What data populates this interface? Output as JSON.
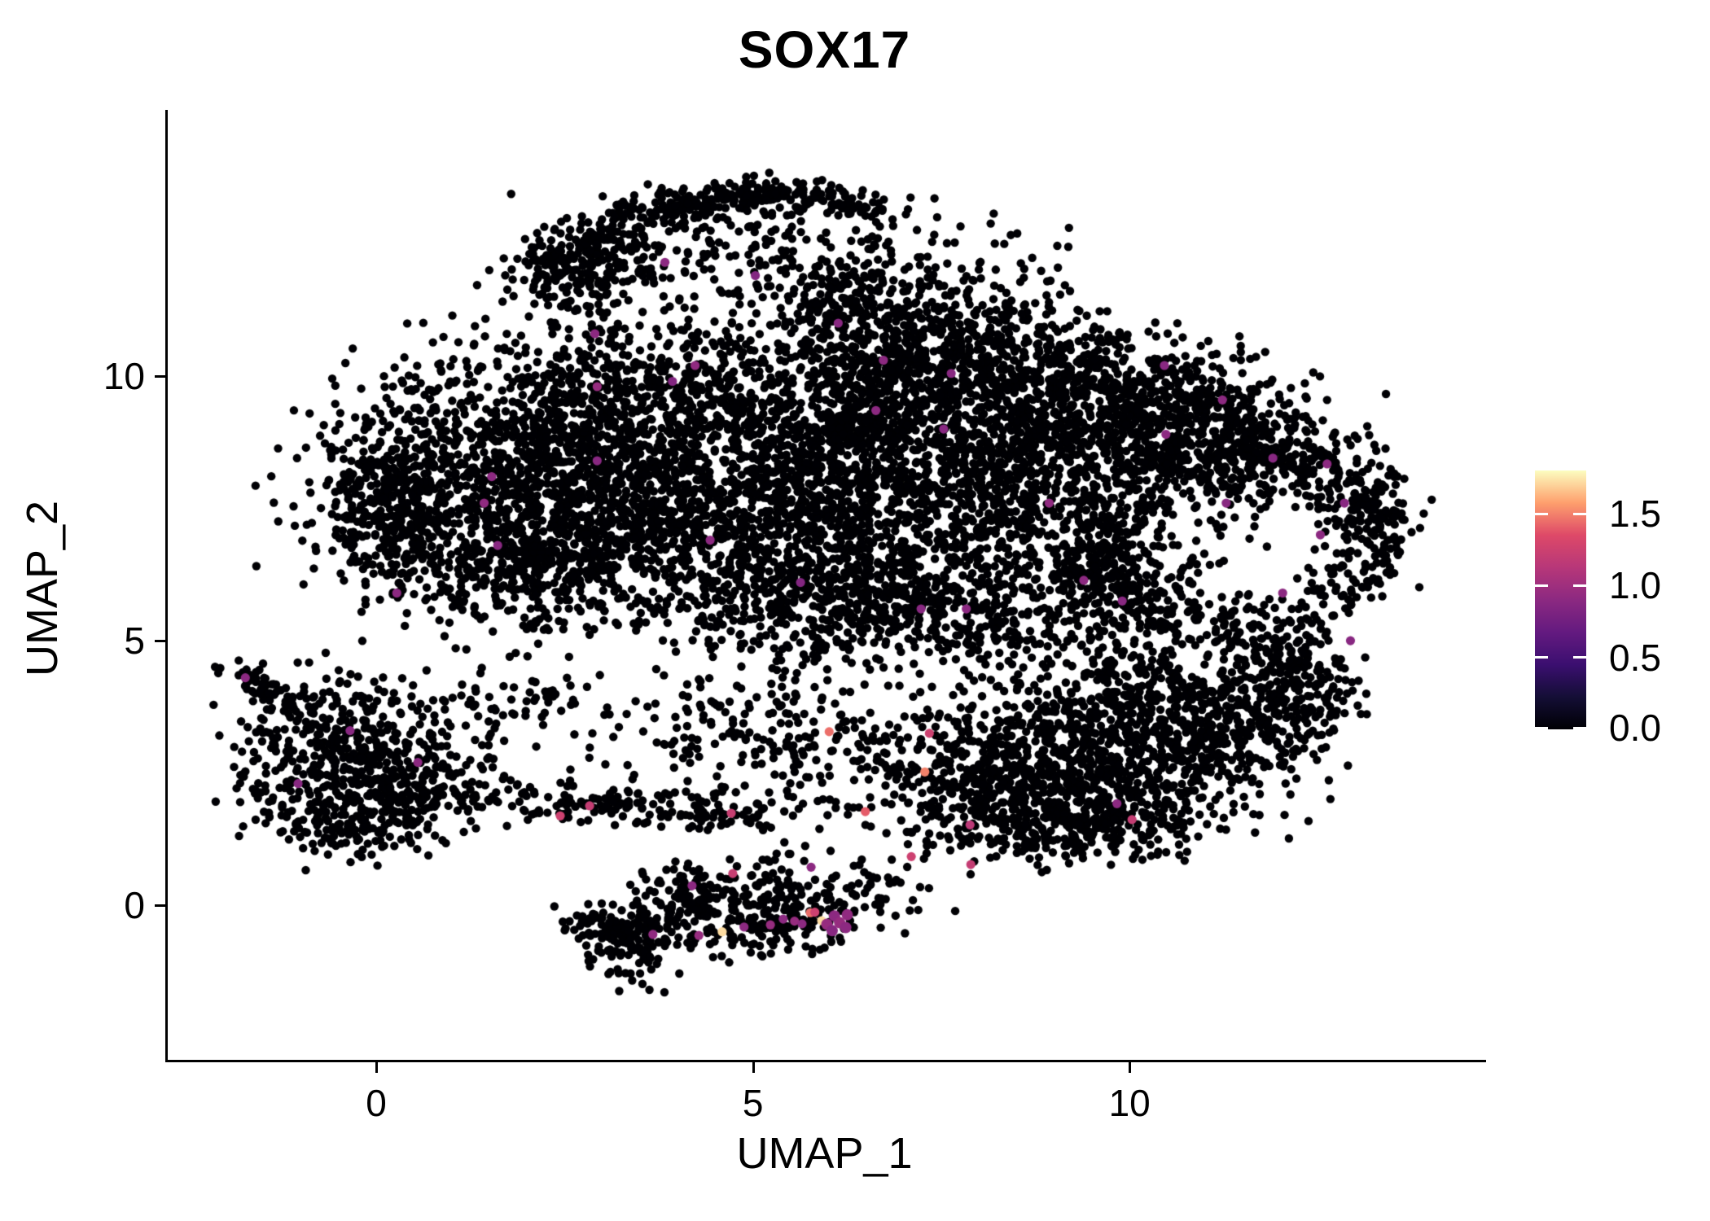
{
  "title": "SOX17",
  "chart_data": {
    "type": "scatter",
    "title": "SOX17",
    "xlabel": "UMAP_1",
    "ylabel": "UMAP_2",
    "xlim": [
      -2.8,
      14.7
    ],
    "ylim": [
      -2.92,
      15.03
    ],
    "grid": false,
    "x_ticks": [
      0,
      5,
      10
    ],
    "x_tick_labels": [
      "0",
      "5",
      "10"
    ],
    "y_ticks": [
      0,
      5,
      10
    ],
    "y_tick_labels": [
      "0",
      "5",
      "10"
    ],
    "point_radius_px": 5.2,
    "base_point_color_value": 0,
    "seed": 7,
    "color_scale": {
      "name": "magma",
      "domain": [
        0,
        1.8
      ],
      "legend_ticks": [
        1.5,
        1.0,
        0.5,
        0.0
      ],
      "legend_tick_labels": [
        "1.5",
        "1.0",
        "0.5",
        "0.0"
      ],
      "stops": [
        "#000004",
        "#140e36",
        "#3b0f70",
        "#641a80",
        "#8c2981",
        "#b73779",
        "#de4968",
        "#fe9f6d",
        "#fcfdbf"
      ]
    },
    "clusters": [
      {
        "type": "curve",
        "x0": 2.0,
        "x1": 6.7,
        "a": 11.95,
        "b": 4.6,
        "c": -3.5,
        "jx": 0.22,
        "jy": 0.16,
        "n": 330
      },
      {
        "type": "gauss",
        "cx": 4.6,
        "cy": 12.55,
        "sx": 1.15,
        "sy": 0.5,
        "n": 230
      },
      {
        "type": "gauss",
        "cx": 2.7,
        "cy": 11.9,
        "sx": 0.5,
        "sy": 0.4,
        "n": 150
      },
      {
        "type": "gauss",
        "cx": 6.2,
        "cy": 11.5,
        "sx": 0.55,
        "sy": 0.45,
        "n": 130
      },
      {
        "type": "gauss",
        "cx": 7.6,
        "cy": 11.75,
        "sx": 0.8,
        "sy": 0.55,
        "n": 85
      },
      {
        "type": "gauss",
        "cx": 1.3,
        "cy": 8.2,
        "sx": 1.05,
        "sy": 1.15,
        "n": 700
      },
      {
        "type": "gauss",
        "cx": 0.5,
        "cy": 7.1,
        "sx": 0.55,
        "sy": 0.75,
        "n": 220
      },
      {
        "type": "gauss",
        "cx": 0.05,
        "cy": 7.7,
        "sx": 0.35,
        "sy": 0.6,
        "n": 120
      },
      {
        "type": "gauss",
        "cx": 2.0,
        "cy": 6.3,
        "sx": 0.7,
        "sy": 0.6,
        "n": 250
      },
      {
        "type": "gauss",
        "cx": 3.2,
        "cy": 9.4,
        "sx": 0.95,
        "sy": 0.85,
        "n": 520
      },
      {
        "type": "gauss",
        "cx": 2.8,
        "cy": 7.5,
        "sx": 0.85,
        "sy": 0.95,
        "n": 460
      },
      {
        "type": "gauss",
        "cx": 4.8,
        "cy": 8.6,
        "sx": 1.1,
        "sy": 1.25,
        "n": 700
      },
      {
        "type": "gauss",
        "cx": 4.4,
        "cy": 6.7,
        "sx": 1.0,
        "sy": 0.7,
        "n": 350
      },
      {
        "type": "gauss",
        "cx": 6.4,
        "cy": 9.7,
        "sx": 1.0,
        "sy": 0.95,
        "n": 560
      },
      {
        "type": "gauss",
        "cx": 6.3,
        "cy": 7.6,
        "sx": 0.9,
        "sy": 1.0,
        "n": 500
      },
      {
        "type": "gauss",
        "cx": 8.3,
        "cy": 8.3,
        "sx": 1.05,
        "sy": 1.15,
        "n": 900
      },
      {
        "type": "gauss",
        "cx": 8.0,
        "cy": 10.4,
        "sx": 1.15,
        "sy": 0.6,
        "n": 420
      },
      {
        "type": "gauss",
        "cx": 9.7,
        "cy": 9.3,
        "sx": 0.85,
        "sy": 0.75,
        "n": 380
      },
      {
        "type": "gauss",
        "cx": 10.6,
        "cy": 9.4,
        "sx": 0.8,
        "sy": 0.55,
        "n": 250
      },
      {
        "type": "gauss",
        "cx": 11.6,
        "cy": 8.6,
        "sx": 0.75,
        "sy": 0.6,
        "n": 300
      },
      {
        "type": "ring",
        "cx": 11.4,
        "cy": 6.9,
        "r0": 1.05,
        "r1": 2.15,
        "ry": 0.95,
        "n": 520
      },
      {
        "type": "gauss",
        "cx": 13.25,
        "cy": 7.4,
        "sx": 0.28,
        "sy": 0.55,
        "n": 90
      },
      {
        "type": "gauss",
        "cx": 9.6,
        "cy": 6.2,
        "sx": 0.8,
        "sy": 0.8,
        "n": 330
      },
      {
        "type": "gauss",
        "cx": 7.1,
        "cy": 5.9,
        "sx": 0.8,
        "sy": 0.6,
        "n": 260
      },
      {
        "type": "gauss",
        "cx": 5.6,
        "cy": 5.7,
        "sx": 0.75,
        "sy": 0.5,
        "n": 190
      },
      {
        "type": "gauss",
        "cx": 6.6,
        "cy": 5.0,
        "sx": 1.3,
        "sy": 0.45,
        "n": 110
      },
      {
        "type": "gauss",
        "cx": 8.8,
        "cy": 5.1,
        "sx": 0.9,
        "sy": 0.4,
        "n": 70
      },
      {
        "type": "gauss",
        "cx": -0.45,
        "cy": 2.85,
        "sx": 0.75,
        "sy": 0.8,
        "n": 460
      },
      {
        "type": "gauss",
        "cx": 0.45,
        "cy": 2.15,
        "sx": 0.5,
        "sy": 0.5,
        "n": 160
      },
      {
        "type": "line",
        "x0": -1.85,
        "y0": 4.45,
        "x1": -1.0,
        "y1": 3.6,
        "j": 0.12,
        "n": 60
      },
      {
        "type": "gauss",
        "cx": -0.3,
        "cy": 1.55,
        "sx": 0.6,
        "sy": 0.28,
        "n": 90
      },
      {
        "type": "line",
        "x0": 1.45,
        "y0": 2.05,
        "x1": 5.1,
        "y1": 1.7,
        "j": 0.2,
        "n": 175
      },
      {
        "type": "gauss",
        "cx": 4.8,
        "cy": 3.4,
        "sx": 0.85,
        "sy": 0.8,
        "n": 140
      },
      {
        "type": "gauss",
        "cx": 2.0,
        "cy": 3.6,
        "sx": 0.7,
        "sy": 0.6,
        "n": 80
      },
      {
        "type": "gauss",
        "cx": 6.1,
        "cy": 2.6,
        "sx": 0.7,
        "sy": 0.8,
        "n": 120
      },
      {
        "type": "gauss",
        "cx": 8.6,
        "cy": 2.6,
        "sx": 0.8,
        "sy": 0.8,
        "n": 460
      },
      {
        "type": "gauss",
        "cx": 10.0,
        "cy": 2.9,
        "sx": 0.9,
        "sy": 0.8,
        "n": 450
      },
      {
        "type": "gauss",
        "cx": 11.3,
        "cy": 3.3,
        "sx": 0.7,
        "sy": 0.7,
        "n": 300
      },
      {
        "type": "gauss",
        "cx": 9.3,
        "cy": 1.6,
        "sx": 0.7,
        "sy": 0.4,
        "n": 200
      },
      {
        "type": "gauss",
        "cx": 9.0,
        "cy": 1.25,
        "sx": 0.9,
        "sy": 0.25,
        "n": 80
      },
      {
        "type": "gauss",
        "cx": 7.6,
        "cy": 2.3,
        "sx": 0.5,
        "sy": 0.6,
        "n": 150
      },
      {
        "type": "gauss",
        "cx": 11.9,
        "cy": 4.5,
        "sx": 0.45,
        "sy": 0.5,
        "n": 140
      },
      {
        "type": "gauss",
        "cx": 10.3,
        "cy": 4.1,
        "sx": 0.6,
        "sy": 0.4,
        "n": 110
      },
      {
        "type": "gauss",
        "cx": 12.4,
        "cy": 3.8,
        "sx": 0.3,
        "sy": 0.4,
        "n": 60
      },
      {
        "type": "gauss",
        "cx": 3.35,
        "cy": -0.6,
        "sx": 0.3,
        "sy": 0.38,
        "n": 150
      },
      {
        "type": "gauss",
        "cx": 4.3,
        "cy": -0.1,
        "sx": 0.45,
        "sy": 0.4,
        "n": 150
      },
      {
        "type": "gauss",
        "cx": 5.55,
        "cy": -0.25,
        "sx": 0.6,
        "sy": 0.33,
        "n": 140
      },
      {
        "type": "line",
        "x0": 2.55,
        "y0": -0.15,
        "x1": 3.1,
        "y1": -0.5,
        "j": 0.12,
        "n": 30
      },
      {
        "type": "disk",
        "cx": 5.0,
        "cy": 0.55,
        "rx": 1.6,
        "ry": 0.45,
        "n": 60
      },
      {
        "type": "gauss",
        "cx": 6.6,
        "cy": 0.2,
        "sx": 0.4,
        "sy": 0.3,
        "n": 40
      }
    ],
    "expressing_points": [
      {
        "x": 3.8,
        "y": 12.15,
        "v": 0.9
      },
      {
        "x": 6.1,
        "y": 11.0,
        "v": 0.88
      },
      {
        "x": 2.87,
        "y": 10.8,
        "v": 0.9
      },
      {
        "x": 4.2,
        "y": 10.2,
        "v": 0.92
      },
      {
        "x": 3.9,
        "y": 9.9,
        "v": 0.85
      },
      {
        "x": 6.7,
        "y": 10.3,
        "v": 0.9
      },
      {
        "x": 7.6,
        "y": 10.05,
        "v": 0.88
      },
      {
        "x": 2.9,
        "y": 9.8,
        "v": 0.95
      },
      {
        "x": 1.5,
        "y": 8.1,
        "v": 0.9
      },
      {
        "x": 2.9,
        "y": 8.4,
        "v": 0.88
      },
      {
        "x": 1.4,
        "y": 7.6,
        "v": 0.92
      },
      {
        "x": 1.58,
        "y": 6.8,
        "v": 0.88
      },
      {
        "x": 0.24,
        "y": 5.9,
        "v": 0.9
      },
      {
        "x": 4.4,
        "y": 6.9,
        "v": 0.9
      },
      {
        "x": 5.6,
        "y": 6.1,
        "v": 0.85
      },
      {
        "x": 6.6,
        "y": 9.35,
        "v": 0.9
      },
      {
        "x": 7.5,
        "y": 9.0,
        "v": 0.88
      },
      {
        "x": 10.45,
        "y": 8.9,
        "v": 0.9
      },
      {
        "x": 11.25,
        "y": 7.6,
        "v": 0.88
      },
      {
        "x": 8.9,
        "y": 7.6,
        "v": 0.92
      },
      {
        "x": 10.43,
        "y": 10.2,
        "v": 0.88
      },
      {
        "x": 11.2,
        "y": 9.55,
        "v": 0.9
      },
      {
        "x": 11.87,
        "y": 8.45,
        "v": 0.88
      },
      {
        "x": 12.59,
        "y": 8.34,
        "v": 0.9
      },
      {
        "x": 12.82,
        "y": 7.6,
        "v": 0.88
      },
      {
        "x": 12.5,
        "y": 7.0,
        "v": 0.9
      },
      {
        "x": 9.87,
        "y": 5.75,
        "v": 0.88
      },
      {
        "x": 7.8,
        "y": 5.6,
        "v": 0.9
      },
      {
        "x": 7.2,
        "y": 5.6,
        "v": 0.88
      },
      {
        "x": 12.0,
        "y": 5.9,
        "v": 0.9
      },
      {
        "x": 12.9,
        "y": 5.0,
        "v": 0.88
      },
      {
        "x": 5.0,
        "y": 11.9,
        "v": 0.85
      },
      {
        "x": 9.36,
        "y": 6.14,
        "v": 0.9
      },
      {
        "x": -1.77,
        "y": 4.3,
        "v": 0.9
      },
      {
        "x": -0.38,
        "y": 3.3,
        "v": 0.88
      },
      {
        "x": 0.52,
        "y": 2.7,
        "v": 0.9
      },
      {
        "x": -1.07,
        "y": 2.3,
        "v": 0.88
      },
      {
        "x": 2.41,
        "y": 1.69,
        "v": 1.25
      },
      {
        "x": 2.8,
        "y": 1.88,
        "v": 1.2
      },
      {
        "x": 4.68,
        "y": 1.74,
        "v": 1.22
      },
      {
        "x": 6.46,
        "y": 1.77,
        "v": 1.4
      },
      {
        "x": 5.98,
        "y": 3.28,
        "v": 1.45
      },
      {
        "x": 7.31,
        "y": 3.25,
        "v": 1.25
      },
      {
        "x": 7.25,
        "y": 2.52,
        "v": 1.5
      },
      {
        "x": 7.07,
        "y": 0.92,
        "v": 1.25
      },
      {
        "x": 7.86,
        "y": 0.77,
        "v": 1.2
      },
      {
        "x": 9.8,
        "y": 1.92,
        "v": 0.9
      },
      {
        "x": 7.85,
        "y": 1.52,
        "v": 1.15
      },
      {
        "x": 10.0,
        "y": 1.62,
        "v": 1.2
      },
      {
        "x": 3.64,
        "y": -0.55,
        "v": 0.92
      },
      {
        "x": 4.16,
        "y": 0.37,
        "v": 0.9
      },
      {
        "x": 4.7,
        "y": 0.6,
        "v": 1.22
      },
      {
        "x": 4.25,
        "y": -0.57,
        "v": 0.95
      },
      {
        "x": 4.56,
        "y": -0.5,
        "v": 1.72
      },
      {
        "x": 4.85,
        "y": -0.41,
        "v": 0.9
      },
      {
        "x": 5.2,
        "y": -0.37,
        "v": 0.95
      },
      {
        "x": 5.37,
        "y": -0.26,
        "v": 0.9
      },
      {
        "x": 5.52,
        "y": -0.3,
        "v": 0.95
      },
      {
        "x": 5.62,
        "y": -0.35,
        "v": 0.9
      },
      {
        "x": 5.73,
        "y": -0.14,
        "v": 1.45
      },
      {
        "x": 5.79,
        "y": -0.13,
        "v": 1.25
      },
      {
        "x": 5.88,
        "y": -0.29,
        "v": 1.72
      },
      {
        "x": 5.95,
        "y": -0.36,
        "v": 0.95,
        "r": 7
      },
      {
        "x": 6.05,
        "y": -0.2,
        "v": 0.9,
        "r": 7
      },
      {
        "x": 6.12,
        "y": -0.33,
        "v": 0.95,
        "r": 7
      },
      {
        "x": 6.2,
        "y": -0.42,
        "v": 0.9,
        "r": 7
      },
      {
        "x": 6.02,
        "y": -0.48,
        "v": 0.88,
        "r": 7
      },
      {
        "x": 6.22,
        "y": -0.18,
        "v": 0.92,
        "r": 7
      },
      {
        "x": 5.74,
        "y": 0.72,
        "v": 0.9
      }
    ]
  }
}
